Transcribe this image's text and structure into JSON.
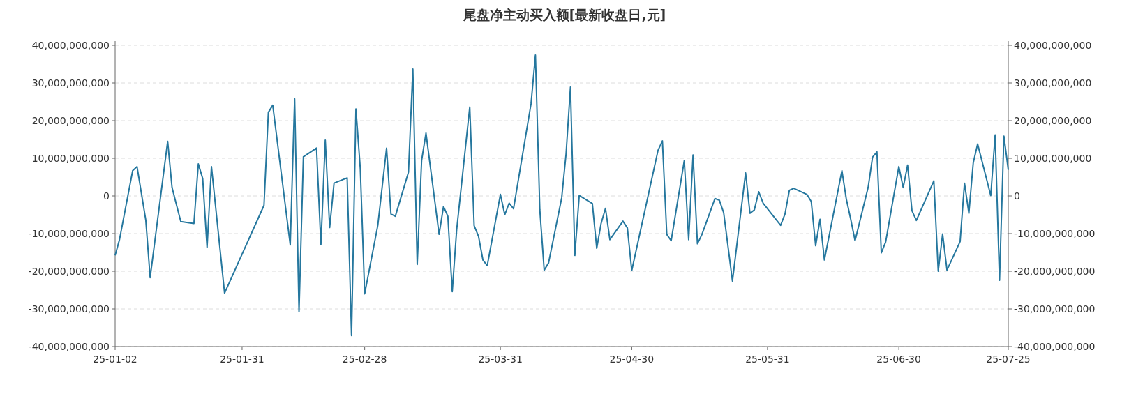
{
  "chart_data": {
    "type": "line",
    "title": "尾盘净主动买入额[最新收盘日,元]",
    "x": [
      "--01-02",
      "--01-03",
      "--01-06",
      "--01-07",
      "--01-09",
      "--01-10",
      "--01-14",
      "--01-15",
      "--01-17",
      "--01-20",
      "--01-21",
      "--01-22",
      "--01-23",
      "--01-24",
      "--01-27",
      "--02-05",
      "--02-06",
      "--02-07",
      "--02-11",
      "--02-12",
      "--02-13",
      "--02-14",
      "--02-17",
      "--02-18",
      "--02-19",
      "--02-20",
      "--02-21",
      "--02-24",
      "--02-25",
      "--02-26",
      "--02-27",
      "--02-28",
      "--03-03",
      "--03-05",
      "--03-06",
      "--03-07",
      "--03-10",
      "--03-11",
      "--03-12",
      "--03-13",
      "--03-14",
      "--03-17",
      "--03-18",
      "--03-19",
      "--03-20",
      "--03-21",
      "--03-24",
      "--03-25",
      "--03-26",
      "--03-27",
      "--03-28",
      "--03-31",
      "--04-01",
      "--04-02",
      "--04-03",
      "--04-07",
      "--04-08",
      "--04-09",
      "--04-10",
      "--04-11",
      "--04-14",
      "--04-15",
      "--04-16",
      "--04-17",
      "--04-18",
      "--04-21",
      "--04-22",
      "--04-23",
      "--04-24",
      "--04-25",
      "--04-28",
      "--04-29",
      "--04-30",
      "--05-06",
      "--05-07",
      "--05-08",
      "--05-09",
      "--05-12",
      "--05-13",
      "--05-14",
      "--05-15",
      "--05-16",
      "--05-19",
      "--05-20",
      "--05-21",
      "--05-23",
      "--05-26",
      "--05-27",
      "--05-28",
      "--05-29",
      "--05-30",
      "--06-03",
      "--06-04",
      "--06-05",
      "--06-06",
      "--06-09",
      "--06-10",
      "--06-11",
      "--06-12",
      "--06-13",
      "--06-17",
      "--06-18",
      "--06-19",
      "--06-20",
      "--06-23",
      "--06-24",
      "--06-25",
      "--06-26",
      "--06-27",
      "--06-30",
      "--07-01",
      "--07-02",
      "--07-03",
      "--07-04",
      "--07-08",
      "--07-09",
      "--07-10",
      "--07-11",
      "--07-14",
      "--07-15",
      "--07-16",
      "--07-17",
      "--07-18",
      "--07-21",
      "--07-22",
      "--07-23",
      "--07-24",
      "--07-25"
    ],
    "series": [
      {
        "color": "#25779e",
        "values": [
          -15800000000,
          -11600000000,
          6700000000,
          7800000000,
          -6400000000,
          -21700000000,
          14500000000,
          2200000000,
          -6800000000,
          -7300000000,
          8500000000,
          4600000000,
          -13700000000,
          7800000000,
          -25800000000,
          -2500000000,
          22200000000,
          24100000000,
          -13000000000,
          25800000000,
          -30800000000,
          10400000000,
          12700000000,
          -12900000000,
          14800000000,
          -8400000000,
          3400000000,
          4800000000,
          -37100000000,
          23100000000,
          7200000000,
          -26000000000,
          -7800000000,
          12700000000,
          -4800000000,
          -5400000000,
          6300000000,
          33700000000,
          -18200000000,
          9400000000,
          16700000000,
          -10200000000,
          -2800000000,
          -5400000000,
          -25400000000,
          -9100000000,
          23600000000,
          -7900000000,
          -10700000000,
          -17000000000,
          -18500000000,
          400000000,
          -5000000000,
          -1900000000,
          -3400000000,
          24500000000,
          37400000000,
          -3600000000,
          -19700000000,
          -17800000000,
          -500000000,
          11200000000,
          28900000000,
          -15800000000,
          100000000,
          -2000000000,
          -13900000000,
          -7300000000,
          -3300000000,
          -11600000000,
          -6700000000,
          -8500000000,
          -19800000000,
          12100000000,
          14600000000,
          -10200000000,
          -11900000000,
          9400000000,
          -11600000000,
          10900000000,
          -12700000000,
          -10300000000,
          -700000000,
          -1100000000,
          -4500000000,
          -22600000000,
          6100000000,
          -4600000000,
          -3700000000,
          1100000000,
          -1900000000,
          -7800000000,
          -4800000000,
          1500000000,
          2000000000,
          400000000,
          -1500000000,
          -13200000000,
          -6200000000,
          -17000000000,
          6700000000,
          -800000000,
          -6100000000,
          -11900000000,
          2300000000,
          10300000000,
          11700000000,
          -15100000000,
          -12200000000,
          7800000000,
          2200000000,
          8200000000,
          -3900000000,
          -6500000000,
          4000000000,
          -20000000000,
          -10100000000,
          -19700000000,
          -12100000000,
          3400000000,
          -4600000000,
          8800000000,
          13800000000,
          100000000,
          16200000000,
          -22400000000,
          15900000000,
          6900000000
        ]
      }
    ],
    "xlim": [
      "--01-02",
      "--07-25"
    ],
    "xticks": [
      {
        "value": "--01-02",
        "label": "25-01-02"
      },
      {
        "value": "--01-31",
        "label": "25-01-31"
      },
      {
        "value": "--02-28",
        "label": "25-02-28"
      },
      {
        "value": "--03-31",
        "label": "25-03-31"
      },
      {
        "value": "--04-30",
        "label": "25-04-30"
      },
      {
        "value": "--05-31",
        "label": "25-05-31"
      },
      {
        "value": "--06-30",
        "label": "25-06-30"
      },
      {
        "value": "--07-25",
        "label": "25-07-25"
      }
    ],
    "ylim": [
      -40000000000,
      40000000000
    ],
    "yticks": [
      {
        "value": -40000000000,
        "label": "-40,000,000,000"
      },
      {
        "value": -30000000000,
        "label": "-30,000,000,000"
      },
      {
        "value": -20000000000,
        "label": "-20,000,000,000"
      },
      {
        "value": -10000000000,
        "label": "-10,000,000,000"
      },
      0,
      {
        "value": 10000000000,
        "label": "10,000,000,000"
      },
      {
        "value": 20000000000,
        "label": "20,000,000,000"
      },
      {
        "value": 30000000000,
        "label": "30,000,000,000"
      },
      {
        "value": 40000000000,
        "label": "40,000,000,000"
      }
    ],
    "y2lim": [
      -40000000000,
      40000000000
    ],
    "y2ticks": [
      {
        "value": -40000000000,
        "label": "-40,000,000,000"
      },
      {
        "value": -30000000000,
        "label": "-30,000,000,000"
      },
      {
        "value": -20000000000,
        "label": "-20,000,000,000"
      },
      {
        "value": -10000000000,
        "label": "-10,000,000,000"
      },
      0,
      {
        "value": 10000000000,
        "label": "10,000,000,000"
      },
      {
        "value": 20000000000,
        "label": "20,000,000,000"
      },
      {
        "value": 30000000000,
        "label": "30,000,000,000"
      },
      {
        "value": 40000000000,
        "label": "40,000,000,000"
      }
    ],
    "grid": "y",
    "marker": "none",
    "line_style": "solid"
  }
}
